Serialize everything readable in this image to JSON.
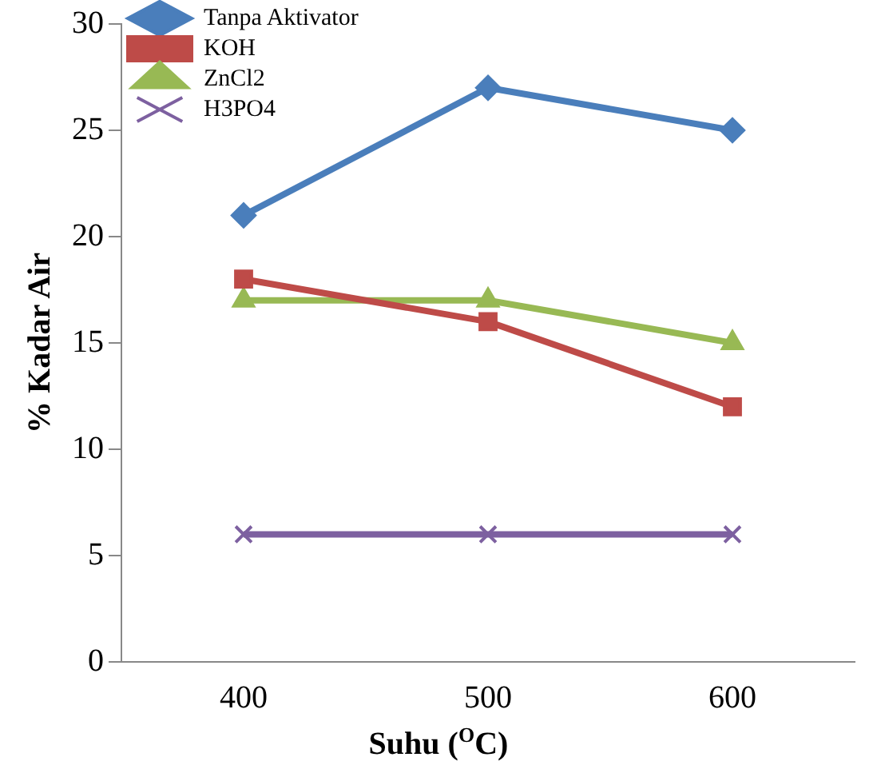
{
  "chart_data": {
    "type": "line",
    "xlabel": "Suhu ($^{O}$C)",
    "ylabel": "% Kadar Air",
    "categories": [
      "400",
      "500",
      "600"
    ],
    "series": [
      {
        "name": "Tanpa Aktivator",
        "color": "#4a7ebb",
        "marker": "diamond",
        "values": [
          21,
          27,
          25
        ]
      },
      {
        "name": "KOH",
        "color": "#be4b48",
        "marker": "square",
        "values": [
          18,
          16,
          12
        ]
      },
      {
        "name": "ZnCl2",
        "color": "#98b954",
        "marker": "triangle",
        "values": [
          17,
          17,
          15
        ]
      },
      {
        "name": "H3PO4",
        "color": "#7d60a0",
        "marker": "cross",
        "values": [
          6,
          6,
          6
        ]
      }
    ],
    "ylim": [
      0,
      30
    ],
    "yticks": [
      0,
      5,
      10,
      15,
      20,
      25,
      30
    ],
    "grid": false,
    "legend": "top left",
    "line_style": "solid"
  }
}
